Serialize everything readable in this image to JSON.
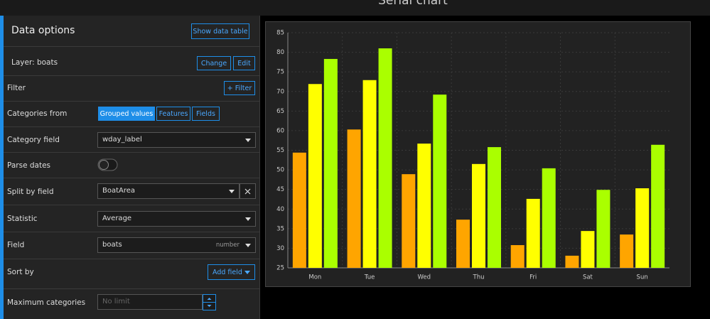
{
  "header": {
    "title": "Serial chart"
  },
  "panel": {
    "title": "Data options",
    "show_data_table": "Show data table",
    "layer": {
      "label": "Layer: boats",
      "change": "Change",
      "edit": "Edit"
    },
    "filter": {
      "label": "Filter",
      "button": "+ Filter"
    },
    "categories_from": {
      "label": "Categories from",
      "options": [
        "Grouped values",
        "Features",
        "Fields"
      ]
    },
    "category_field": {
      "label": "Category field",
      "value": "wday_label"
    },
    "parse_dates": {
      "label": "Parse dates"
    },
    "split_by_field": {
      "label": "Split by field",
      "value": "BoatArea"
    },
    "statistic": {
      "label": "Statistic",
      "value": "Average"
    },
    "field": {
      "label": "Field",
      "value": "boats",
      "type": "number"
    },
    "sort_by": {
      "label": "Sort by",
      "button": "Add field"
    },
    "max_categories": {
      "label": "Maximum categories",
      "placeholder": "No limit"
    }
  },
  "chart_data": {
    "type": "bar",
    "categories": [
      "Mon",
      "Tue",
      "Wed",
      "Thu",
      "Fri",
      "Sat",
      "Sun"
    ],
    "series": [
      {
        "color": "#ffa500",
        "values": [
          54.4,
          60.3,
          48.9,
          37.3,
          30.8,
          28.1,
          33.5
        ]
      },
      {
        "color": "#ffff00",
        "values": [
          71.9,
          72.9,
          56.7,
          51.5,
          42.6,
          34.4,
          45.3
        ]
      },
      {
        "color": "#aaff00",
        "values": [
          78.3,
          81.0,
          69.2,
          55.8,
          50.4,
          44.9,
          56.4
        ]
      }
    ],
    "ylim": [
      25,
      85
    ],
    "yticks": [
      25,
      30,
      35,
      40,
      45,
      50,
      55,
      60,
      65,
      70,
      75,
      80,
      85
    ],
    "grid": true
  }
}
